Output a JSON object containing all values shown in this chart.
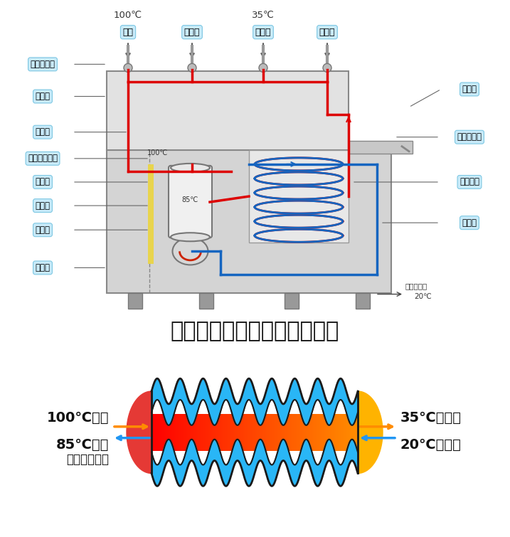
{
  "title": "圣蓝常压式节能饮水机原理图",
  "title_fontsize": 22,
  "bg_color": "#ffffff",
  "label_bg_color": "#c8eaf9",
  "label_border_color": "#7ec8e3",
  "left_labels": [
    "水电联动阀",
    "电控盒",
    "智能阀",
    "电开水器水罐",
    "安全阀",
    "发热管",
    "净水器",
    "排水口"
  ],
  "right_labels_top": [
    "接水盆"
  ],
  "right_labels": [
    "水温调节阀",
    "热交换器",
    "电磁阀"
  ],
  "outlet_labels": [
    "开水",
    "温开水",
    "温开水",
    "温开水"
  ],
  "temp_100": "100℃",
  "temp_35": "35℃",
  "temp_85_label": "85℃",
  "temp_100_label": "100℃",
  "bottom_left_label1": "100℃开水",
  "bottom_left_label2": "85℃热水",
  "bottom_left_label3": "（无需用电）",
  "bottom_right_label1": "35℃温开水",
  "bottom_right_label2": "20℃自来水",
  "tapwater_label": "自来水进口",
  "tapwater_temp": "20℃",
  "arrow_color_orange": "#FF8C00",
  "arrow_color_blue": "#2196F3",
  "wave_color_blue": "#29B6F6",
  "wave_outline_color": "#1a1a1a",
  "pipe_red": "#dd0000",
  "pipe_blue": "#1565C0",
  "machine_body_color": "#d4d4d4",
  "machine_upper_color": "#e2e2e2",
  "machine_edge_color": "#888888"
}
